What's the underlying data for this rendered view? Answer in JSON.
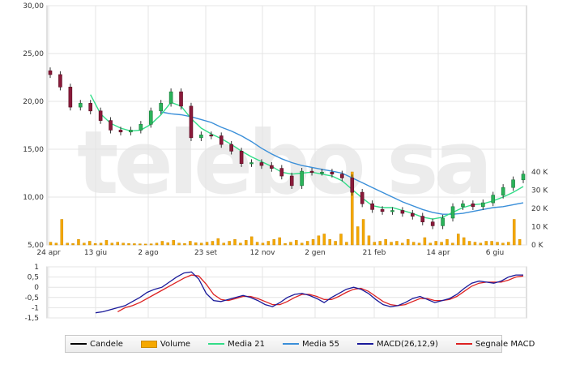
{
  "watermark": "telebo sa",
  "main_chart": {
    "price_ticks": [
      "30,00",
      "25,00",
      "20,00",
      "15,00",
      "10,00",
      "5,00"
    ],
    "price_ylim": [
      5,
      30
    ],
    "volume_ticks": [
      "40 K",
      "30 K",
      "20 K",
      "10 K",
      "0 K"
    ],
    "date_ticks": [
      "24 apr",
      "13 giu",
      "2 ago",
      "23 set",
      "12 nov",
      "2 gen",
      "21 feb",
      "14 apr",
      "6 giu"
    ]
  },
  "macd_chart": {
    "ticks": [
      "1",
      "0,5",
      "0",
      "-0,5",
      "-1",
      "-1,5"
    ],
    "ylim": [
      -1.5,
      1
    ]
  },
  "legend": [
    {
      "label": "Candele",
      "color": "#000000",
      "kind": "line"
    },
    {
      "label": "Volume",
      "color": "#f5a800",
      "kind": "bar"
    },
    {
      "label": "Media 21",
      "color": "#33dd88",
      "kind": "line"
    },
    {
      "label": "Media 55",
      "color": "#3a8fd9",
      "kind": "line"
    },
    {
      "label": "MACD(26,12,9)",
      "color": "#1a1a9a",
      "kind": "line"
    },
    {
      "label": "Segnale MACD",
      "color": "#dd2222",
      "kind": "line"
    }
  ],
  "chart_data": [
    {
      "type": "line",
      "subtype": "candlestick",
      "x_ticks": [
        "24 apr",
        "13 giu",
        "2 ago",
        "23 set",
        "12 nov",
        "2 gen",
        "21 feb",
        "14 apr",
        "6 giu"
      ],
      "ylim": [
        5,
        30
      ],
      "series": [
        {
          "name": "Candele",
          "values": [
            22.8,
            21.5,
            19.4,
            19.8,
            19.0,
            18.0,
            17.0,
            16.8,
            17.0,
            17.6,
            19.0,
            19.8,
            21.0,
            19.5,
            16.2,
            16.5,
            16.4,
            15.5,
            14.8,
            13.5,
            13.6,
            13.3,
            13.0,
            12.2,
            11.2,
            12.7,
            12.6,
            12.6,
            12.4,
            12.0,
            10.5,
            9.3,
            8.7,
            8.5,
            8.6,
            8.3,
            8.0,
            7.4,
            7.0,
            7.8,
            9.0,
            9.3,
            9.0,
            9.4,
            10.2,
            11.0,
            11.8,
            12.4
          ]
        },
        {
          "name": "Media 21",
          "values": [
            null,
            null,
            null,
            null,
            20.7,
            18.7,
            17.7,
            17.2,
            16.9,
            17.0,
            17.6,
            18.6,
            19.9,
            19.5,
            18.2,
            17.2,
            16.6,
            16.1,
            15.5,
            14.8,
            14.2,
            13.7,
            13.2,
            12.6,
            12.4,
            12.5,
            12.6,
            12.4,
            12.2,
            11.7,
            10.8,
            9.9,
            9.1,
            8.9,
            8.9,
            8.6,
            8.3,
            7.9,
            7.7,
            7.9,
            8.4,
            8.9,
            9.2,
            9.3,
            9.6,
            10.0,
            10.5,
            11.1
          ]
        },
        {
          "name": "Media 55",
          "values": [
            null,
            null,
            null,
            null,
            null,
            null,
            null,
            null,
            null,
            null,
            null,
            18.9,
            18.7,
            18.6,
            18.4,
            18.1,
            17.8,
            17.3,
            16.9,
            16.4,
            15.8,
            15.1,
            14.5,
            14.0,
            13.6,
            13.3,
            13.1,
            12.9,
            12.7,
            12.5,
            12.0,
            11.5,
            11.0,
            10.5,
            10.0,
            9.5,
            9.1,
            8.7,
            8.4,
            8.2,
            8.2,
            8.3,
            8.5,
            8.7,
            8.9,
            9.0,
            9.2,
            9.4
          ]
        }
      ]
    },
    {
      "type": "bar",
      "name": "Volume",
      "y_ticks": [
        "40 K",
        "30 K",
        "20 K",
        "10 K",
        "0 K"
      ],
      "ylim": [
        0,
        40
      ],
      "values": [
        1.5,
        1,
        14,
        1,
        0.8,
        3,
        1,
        2,
        0.8,
        1,
        2.5,
        1,
        1.5,
        1,
        0.8,
        0.7,
        0.6,
        0.5,
        0.6,
        1,
        2,
        1.2,
        2.5,
        1,
        0.8,
        2,
        1.2,
        1,
        1.5,
        2,
        3.5,
        1,
        2,
        3,
        1,
        2.5,
        4.5,
        1.5,
        1,
        2,
        3,
        4,
        0.8,
        1.5,
        2.5,
        1,
        2,
        3,
        5,
        6,
        3,
        2,
        6,
        1.5,
        42,
        10,
        14,
        5,
        1.5,
        2,
        3,
        1.5,
        2,
        1,
        3,
        1.5,
        1,
        4,
        1,
        2,
        1.5,
        3,
        1,
        6,
        4,
        2,
        1.5,
        1,
        2,
        2,
        1.5,
        1,
        1.5,
        14,
        3
      ]
    },
    {
      "type": "line",
      "ylim": [
        -1.5,
        1
      ],
      "y_ticks": [
        "1",
        "0,5",
        "0",
        "-0,5",
        "-1",
        "-1,5"
      ],
      "series": [
        {
          "name": "MACD(26,12,9)",
          "values": [
            -1.25,
            -1.2,
            -1.1,
            -1.0,
            -0.9,
            -0.7,
            -0.5,
            -0.25,
            -0.1,
            0.0,
            0.25,
            0.5,
            0.7,
            0.75,
            0.4,
            -0.3,
            -0.65,
            -0.7,
            -0.6,
            -0.5,
            -0.4,
            -0.5,
            -0.65,
            -0.85,
            -0.95,
            -0.75,
            -0.5,
            -0.35,
            -0.3,
            -0.4,
            -0.55,
            -0.75,
            -0.5,
            -0.3,
            -0.1,
            0.0,
            -0.1,
            -0.3,
            -0.6,
            -0.85,
            -0.95,
            -0.9,
            -0.75,
            -0.55,
            -0.45,
            -0.6,
            -0.75,
            -0.65,
            -0.55,
            -0.35,
            -0.05,
            0.2,
            0.3,
            0.25,
            0.2,
            0.3,
            0.5,
            0.6,
            0.6
          ]
        },
        {
          "name": "Segnale MACD",
          "values": [
            null,
            null,
            null,
            -1.2,
            -1.0,
            -0.9,
            -0.75,
            -0.55,
            -0.35,
            -0.15,
            0.05,
            0.25,
            0.45,
            0.6,
            0.55,
            0.15,
            -0.35,
            -0.6,
            -0.65,
            -0.55,
            -0.45,
            -0.45,
            -0.55,
            -0.7,
            -0.85,
            -0.85,
            -0.7,
            -0.5,
            -0.35,
            -0.35,
            -0.45,
            -0.6,
            -0.6,
            -0.45,
            -0.25,
            -0.1,
            -0.05,
            -0.2,
            -0.45,
            -0.7,
            -0.85,
            -0.9,
            -0.85,
            -0.7,
            -0.55,
            -0.55,
            -0.65,
            -0.65,
            -0.6,
            -0.45,
            -0.2,
            0.05,
            0.2,
            0.25,
            0.25,
            0.25,
            0.35,
            0.5,
            0.55
          ]
        }
      ]
    }
  ]
}
